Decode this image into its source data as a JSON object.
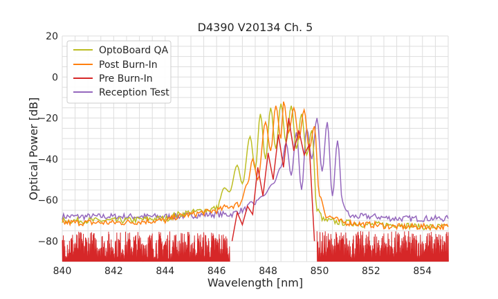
{
  "chart_data": {
    "type": "line",
    "title": "D4390 V20134 Ch. 5",
    "xlabel": "Wavelength [nm]",
    "ylabel": "Optical Power [dB]",
    "xlim": [
      840,
      855
    ],
    "ylim": [
      -90,
      20
    ],
    "x_ticks": [
      840,
      842,
      844,
      846,
      848,
      850,
      852,
      854
    ],
    "y_ticks": [
      20,
      0,
      -20,
      -40,
      -60,
      -80
    ],
    "x_tick_labels": [
      "840",
      "842",
      "844",
      "846",
      "848",
      "850",
      "852",
      "854"
    ],
    "y_tick_labels": [
      "20",
      "0",
      "−20",
      "−40",
      "−60",
      "−80"
    ],
    "grid": true,
    "legend_position": "top-left",
    "series": [
      {
        "name": "OptoBoard QA",
        "color": "#bcbd22",
        "noise_floor": -70,
        "points": [
          [
            840,
            -70
          ],
          [
            842,
            -70
          ],
          [
            844,
            -69
          ],
          [
            844.5,
            -67
          ],
          [
            845,
            -66
          ],
          [
            845.5,
            -65
          ],
          [
            846,
            -64
          ],
          [
            846.3,
            -54
          ],
          [
            846.5,
            -56
          ],
          [
            846.8,
            -43
          ],
          [
            847,
            -52
          ],
          [
            847.3,
            -29
          ],
          [
            847.5,
            -45
          ],
          [
            847.7,
            -18
          ],
          [
            847.9,
            -40
          ],
          [
            848.1,
            -15
          ],
          [
            848.3,
            -35
          ],
          [
            848.5,
            -13
          ],
          [
            848.7,
            -32
          ],
          [
            848.9,
            -14
          ],
          [
            849.1,
            -35
          ],
          [
            849.3,
            -18
          ],
          [
            849.5,
            -38
          ],
          [
            849.7,
            -26
          ],
          [
            849.9,
            -65
          ],
          [
            850.2,
            -70
          ],
          [
            851,
            -71
          ],
          [
            852,
            -72
          ],
          [
            853,
            -72
          ],
          [
            854,
            -73
          ],
          [
            855,
            -73
          ]
        ]
      },
      {
        "name": "Post Burn-In",
        "color": "#ff7f0e",
        "noise_floor": -72,
        "points": [
          [
            840,
            -71
          ],
          [
            842,
            -71
          ],
          [
            844,
            -70
          ],
          [
            844.5,
            -68
          ],
          [
            845,
            -67
          ],
          [
            845.5,
            -66
          ],
          [
            846,
            -65
          ],
          [
            846.5,
            -63
          ],
          [
            846.9,
            -62
          ],
          [
            847.2,
            -52
          ],
          [
            847.4,
            -40
          ],
          [
            847.6,
            -50
          ],
          [
            847.9,
            -22
          ],
          [
            848.1,
            -36
          ],
          [
            848.3,
            -14
          ],
          [
            848.5,
            -30
          ],
          [
            848.6,
            -12
          ],
          [
            848.8,
            -27
          ],
          [
            849.0,
            -15
          ],
          [
            849.2,
            -30
          ],
          [
            849.4,
            -16
          ],
          [
            849.6,
            -35
          ],
          [
            849.8,
            -24
          ],
          [
            850.0,
            -58
          ],
          [
            850.3,
            -68
          ],
          [
            851,
            -71
          ],
          [
            852,
            -72
          ],
          [
            853,
            -73
          ],
          [
            854,
            -73
          ],
          [
            855,
            -73
          ]
        ]
      },
      {
        "name": "Pre Burn-In",
        "color": "#d62728",
        "noise_floor": -82,
        "points": [
          [
            846.6,
            -80
          ],
          [
            846.8,
            -66
          ],
          [
            847.0,
            -72
          ],
          [
            847.2,
            -63
          ],
          [
            847.4,
            -67
          ],
          [
            847.6,
            -44
          ],
          [
            847.8,
            -58
          ],
          [
            848.0,
            -37
          ],
          [
            848.2,
            -50
          ],
          [
            848.4,
            -28
          ],
          [
            848.6,
            -44
          ],
          [
            848.8,
            -20
          ],
          [
            849.0,
            -36
          ],
          [
            849.2,
            -26
          ],
          [
            849.4,
            -38
          ],
          [
            849.6,
            -33
          ],
          [
            849.8,
            -80
          ]
        ]
      },
      {
        "name": "Reception Test",
        "color": "#9467bd",
        "noise_floor": -68,
        "points": [
          [
            840,
            -68
          ],
          [
            842,
            -68
          ],
          [
            844,
            -68
          ],
          [
            846,
            -67
          ],
          [
            846.5,
            -67
          ],
          [
            847,
            -65
          ],
          [
            847.4,
            -62
          ],
          [
            847.8,
            -58
          ],
          [
            848.2,
            -52
          ],
          [
            848.5,
            -44
          ],
          [
            848.7,
            -32
          ],
          [
            848.9,
            -48
          ],
          [
            849.1,
            -27
          ],
          [
            849.3,
            -55
          ],
          [
            849.5,
            -25
          ],
          [
            849.7,
            -40
          ],
          [
            849.9,
            -20
          ],
          [
            850.1,
            -46
          ],
          [
            850.3,
            -22
          ],
          [
            850.5,
            -58
          ],
          [
            850.7,
            -31
          ],
          [
            850.9,
            -62
          ],
          [
            851.2,
            -68
          ],
          [
            852,
            -68
          ],
          [
            853,
            -69
          ],
          [
            854,
            -69
          ],
          [
            855,
            -69
          ]
        ]
      }
    ]
  }
}
